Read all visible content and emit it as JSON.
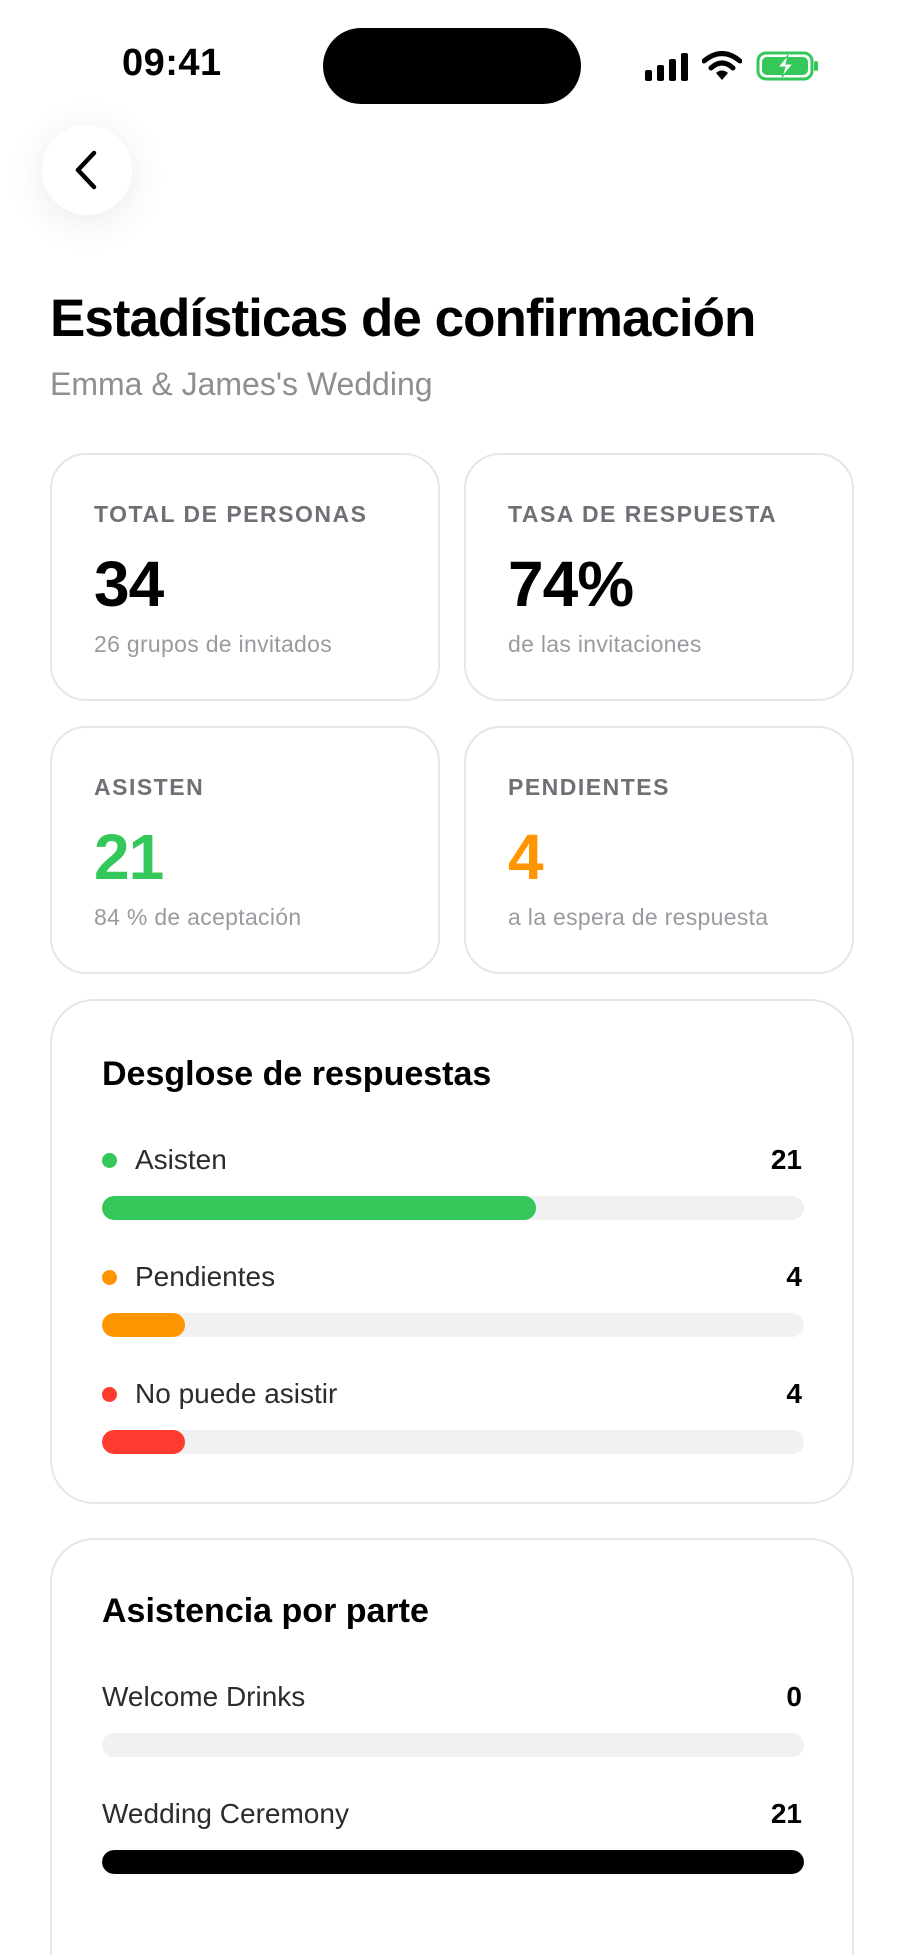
{
  "status_bar": {
    "time": "09:41"
  },
  "nav": {
    "back_icon": "chevron-left-icon"
  },
  "header": {
    "title": "Estadísticas de confirmación",
    "subtitle": "Emma & James's Wedding"
  },
  "stats": [
    {
      "label": "TOTAL DE PERSONAS",
      "value": "34",
      "sub": "26 grupos de invitados",
      "color": "#000000"
    },
    {
      "label": "TASA DE RESPUESTA",
      "value": "74%",
      "sub": "de las invitaciones",
      "color": "#000000"
    },
    {
      "label": "ASISTEN",
      "value": "21",
      "sub": "84 % de aceptación",
      "color": "#34C759"
    },
    {
      "label": "PENDIENTES",
      "value": "4",
      "sub": "a la espera de respuesta",
      "color": "#FF9500"
    }
  ],
  "breakdown": {
    "title": "Desglose de respuestas",
    "rows": [
      {
        "label": "Asisten",
        "value": "21",
        "fraction": 0.618,
        "color": "#34C759"
      },
      {
        "label": "Pendientes",
        "value": "4",
        "fraction": 0.118,
        "color": "#FF9500"
      },
      {
        "label": "No puede asistir",
        "value": "4",
        "fraction": 0.118,
        "color": "#FF3B30"
      }
    ]
  },
  "attendance": {
    "title": "Asistencia por parte",
    "rows": [
      {
        "label": "Welcome Drinks",
        "value": "0",
        "fraction": 0,
        "color": "#000000"
      },
      {
        "label": "Wedding Ceremony",
        "value": "21",
        "fraction": 1,
        "color": "#000000"
      }
    ]
  }
}
